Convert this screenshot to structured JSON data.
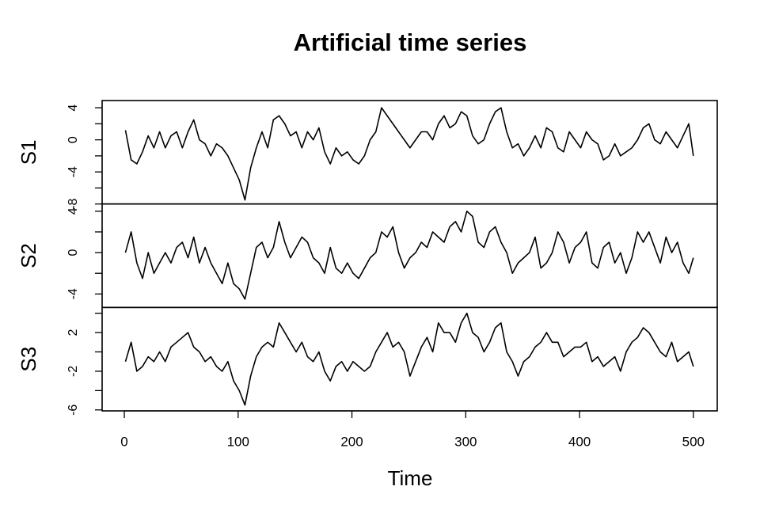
{
  "chart_data": {
    "type": "line",
    "title": "Artificial time series",
    "xlabel": "Time",
    "xlim": [
      -19.5,
      521
    ],
    "xticks": [
      0,
      100,
      200,
      300,
      400,
      500
    ],
    "x": [
      1,
      6,
      11,
      16,
      21,
      26,
      31,
      36,
      41,
      46,
      51,
      56,
      61,
      66,
      71,
      76,
      81,
      86,
      91,
      96,
      101,
      106,
      111,
      116,
      121,
      126,
      131,
      136,
      141,
      146,
      151,
      156,
      161,
      166,
      171,
      176,
      181,
      186,
      191,
      196,
      201,
      206,
      211,
      216,
      221,
      226,
      231,
      236,
      241,
      246,
      251,
      256,
      261,
      266,
      271,
      276,
      281,
      286,
      291,
      296,
      301,
      306,
      311,
      316,
      321,
      326,
      331,
      336,
      341,
      346,
      351,
      356,
      361,
      366,
      371,
      376,
      381,
      386,
      391,
      396,
      401,
      406,
      411,
      416,
      421,
      426,
      431,
      436,
      441,
      446,
      451,
      456,
      461,
      466,
      471,
      476,
      481,
      486,
      491,
      496,
      500
    ],
    "series": [
      {
        "name": "S1",
        "color": "#000000",
        "ylim": [
          -8,
          4.9
        ],
        "yticks": [
          4,
          0,
          -4,
          -8
        ],
        "minor_yticks": [
          2,
          -2,
          -6
        ],
        "values": [
          1.2,
          -2.5,
          -3.0,
          -1.5,
          0.5,
          -1,
          1,
          -1,
          0.5,
          1,
          -1,
          1,
          2.5,
          0,
          -0.5,
          -2,
          -0.5,
          -1,
          -2,
          -3.5,
          -5,
          -7.5,
          -3.5,
          -1,
          1,
          -1,
          2.5,
          3,
          2,
          0.5,
          1,
          -1,
          1,
          0,
          1.5,
          -1.5,
          -3,
          -1,
          -2,
          -1.5,
          -2.5,
          -3,
          -2,
          0,
          1,
          4,
          3,
          2,
          1,
          0,
          -1,
          0,
          1,
          1,
          0,
          2,
          3,
          1.5,
          2,
          3.5,
          3,
          0.5,
          -0.5,
          0,
          2,
          3.5,
          4,
          1,
          -1,
          -0.5,
          -2,
          -1,
          0.5,
          -1,
          1.5,
          1,
          -1,
          -1.5,
          1,
          0,
          -1,
          1,
          0,
          -0.5,
          -2.5,
          -2,
          -0.5,
          -2,
          -1.5,
          -1,
          0,
          1.5,
          2,
          0,
          -0.5,
          1,
          0,
          -1,
          0.5,
          2,
          -2
        ]
      },
      {
        "name": "S2",
        "color": "#000000",
        "ylim": [
          -5.3,
          4.7
        ],
        "yticks": [
          4,
          0,
          -4
        ],
        "minor_yticks": [
          2,
          -2
        ],
        "values": [
          0,
          2,
          -1,
          -2.5,
          0,
          -2,
          -1,
          0,
          -1,
          0.5,
          1,
          -0.5,
          1.5,
          -1,
          0.5,
          -1,
          -2,
          -3,
          -1,
          -3,
          -3.5,
          -4.5,
          -2,
          0.5,
          1,
          -0.5,
          0.5,
          3,
          1,
          -0.5,
          0.5,
          1.5,
          1,
          -0.5,
          -1,
          -2,
          0.5,
          -1.5,
          -2,
          -1,
          -2,
          -2.5,
          -1.5,
          -0.5,
          0,
          2,
          1.5,
          2.5,
          0,
          -1.5,
          -0.5,
          0,
          1,
          0.5,
          2,
          1.5,
          1,
          2.5,
          3,
          2,
          4,
          3.5,
          1,
          0.5,
          2,
          2.5,
          1,
          0,
          -2,
          -1,
          -0.5,
          0,
          1.5,
          -1.5,
          -1,
          0,
          2,
          1,
          -1,
          0.5,
          1,
          2,
          -1,
          -1.5,
          0.5,
          1,
          -1,
          0,
          -2,
          -0.5,
          2,
          1,
          2,
          0.5,
          -1,
          1.5,
          0,
          1,
          -1,
          -2,
          -0.5
        ]
      },
      {
        "name": "S3",
        "color": "#000000",
        "ylim": [
          -6.1,
          4.6
        ],
        "yticks": [
          2,
          -2,
          -6
        ],
        "minor_yticks": [
          4,
          0,
          -4
        ],
        "values": [
          -1,
          1,
          -2,
          -1.5,
          -0.5,
          -1,
          0,
          -1,
          0.5,
          1,
          1.5,
          2,
          0.5,
          0,
          -1,
          -0.5,
          -1.5,
          -2,
          -1,
          -3,
          -4,
          -5.5,
          -2.5,
          -0.5,
          0.5,
          1,
          0.5,
          3,
          2,
          1,
          0,
          1,
          -0.5,
          -1,
          0,
          -2,
          -3,
          -1.5,
          -1,
          -2,
          -1,
          -1.5,
          -2,
          -1.5,
          0,
          1,
          2,
          0.5,
          1,
          0,
          -2.5,
          -1,
          0.5,
          1.5,
          0,
          3,
          2,
          2,
          1,
          3,
          4,
          2,
          1.5,
          0,
          1,
          2.5,
          3,
          0,
          -1,
          -2.5,
          -1,
          -0.5,
          0.5,
          1,
          2,
          1,
          1,
          -0.5,
          0,
          0.5,
          0.5,
          1,
          -1,
          -0.5,
          -1.5,
          -1,
          -0.5,
          -2,
          0,
          1,
          1.5,
          2.5,
          2,
          1,
          0,
          -0.5,
          1,
          -1,
          -0.5,
          0,
          -1.5
        ]
      }
    ]
  }
}
